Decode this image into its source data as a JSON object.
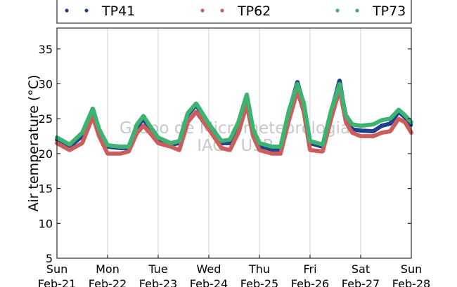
{
  "chart_data": {
    "type": "scatter",
    "title": "",
    "xlabel": "",
    "ylabel": "Air temperature (°C)",
    "ylim": [
      5,
      38
    ],
    "yticks": [
      5,
      10,
      15,
      20,
      25,
      30,
      35
    ],
    "xlim": [
      "2021-02-21T00:00",
      "2021-02-28T00:00"
    ],
    "xticks": [
      {
        "day": "Sun",
        "date": "Feb-21"
      },
      {
        "day": "Mon",
        "date": "Feb-22"
      },
      {
        "day": "Tue",
        "date": "Feb-23"
      },
      {
        "day": "Wed",
        "date": "Feb-24"
      },
      {
        "day": "Thu",
        "date": "Feb-25"
      },
      {
        "day": "Fri",
        "date": "Feb-26"
      },
      {
        "day": "Sat",
        "date": "Feb-27"
      },
      {
        "day": "Sun",
        "date": "Feb-28"
      }
    ],
    "grid": "vertical",
    "legend_position": "top",
    "watermark": [
      "Grupo de Micrometeorologia",
      "IAG / USP"
    ],
    "x": [
      "2021-02-21T00:00",
      "2021-02-21T06:00",
      "2021-02-21T12:00",
      "2021-02-21T17:00",
      "2021-02-21T20:00",
      "2021-02-22T00:00",
      "2021-02-22T06:00",
      "2021-02-22T10:00",
      "2021-02-22T14:00",
      "2021-02-22T17:00",
      "2021-02-22T20:00",
      "2021-02-23T00:00",
      "2021-02-23T06:00",
      "2021-02-23T10:00",
      "2021-02-23T14:00",
      "2021-02-23T18:00",
      "2021-02-24T00:00",
      "2021-02-24T06:00",
      "2021-02-24T10:00",
      "2021-02-24T14:00",
      "2021-02-24T18:00",
      "2021-02-24T21:00",
      "2021-02-25T00:00",
      "2021-02-25T06:00",
      "2021-02-25T10:00",
      "2021-02-25T14:00",
      "2021-02-25T18:00",
      "2021-02-25T21:00",
      "2021-02-26T00:00",
      "2021-02-26T06:00",
      "2021-02-26T10:00",
      "2021-02-26T14:00",
      "2021-02-26T17:00",
      "2021-02-26T20:00",
      "2021-02-27T00:00",
      "2021-02-27T06:00",
      "2021-02-27T10:00",
      "2021-02-27T14:00",
      "2021-02-27T18:00",
      "2021-02-27T21:00",
      "2021-02-28T00:00"
    ],
    "series": [
      {
        "name": "TP41",
        "color": "#1f3f8f",
        "values": [
          22.0,
          21.0,
          22.5,
          26.2,
          23.0,
          21.0,
          20.8,
          20.8,
          23.8,
          25.0,
          23.5,
          22.0,
          21.3,
          21.5,
          25.5,
          27.0,
          24.0,
          21.5,
          21.5,
          24.0,
          28.2,
          23.0,
          21.0,
          20.5,
          20.5,
          26.0,
          30.3,
          27.0,
          21.5,
          21.0,
          26.0,
          30.5,
          25.0,
          23.5,
          23.3,
          23.2,
          24.0,
          24.3,
          26.0,
          25.2,
          24.0
        ]
      },
      {
        "name": "TP62",
        "color": "#cd5c5c",
        "values": [
          21.5,
          20.5,
          21.5,
          25.3,
          22.5,
          20.0,
          20.0,
          20.3,
          23.0,
          24.0,
          23.0,
          21.5,
          21.0,
          20.5,
          24.5,
          26.0,
          23.5,
          20.8,
          20.5,
          23.0,
          27.0,
          22.5,
          20.5,
          20.0,
          20.0,
          24.8,
          29.0,
          26.0,
          20.5,
          20.3,
          25.0,
          29.2,
          24.5,
          23.0,
          22.5,
          22.5,
          23.0,
          23.2,
          25.0,
          24.5,
          23.0
        ]
      },
      {
        "name": "TP73",
        "color": "#3cb371",
        "values": [
          22.3,
          21.3,
          23.0,
          26.5,
          23.5,
          21.2,
          21.0,
          21.0,
          24.2,
          25.4,
          24.0,
          22.3,
          21.5,
          21.8,
          25.8,
          27.2,
          24.3,
          21.8,
          22.0,
          24.5,
          28.5,
          23.5,
          21.5,
          21.0,
          21.0,
          26.2,
          30.0,
          27.3,
          21.8,
          21.3,
          26.2,
          30.0,
          25.5,
          24.2,
          24.0,
          24.2,
          24.8,
          25.0,
          26.3,
          25.5,
          24.5
        ]
      }
    ]
  }
}
